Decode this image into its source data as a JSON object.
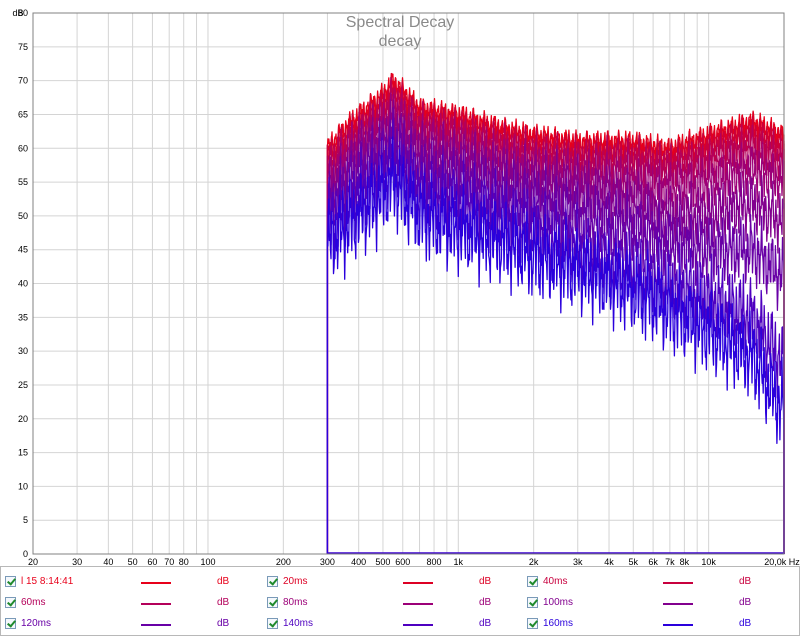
{
  "chart_data": {
    "type": "line",
    "title": "Spectral Decay",
    "subtitle": "decay",
    "ylabel": "dB",
    "x_unit": "Hz",
    "x_scale": "log",
    "xlim": [
      20,
      20000
    ],
    "ylim": [
      0,
      80
    ],
    "grid": true,
    "x_ticks": [
      {
        "value": 20,
        "label": "20"
      },
      {
        "value": 30,
        "label": "30"
      },
      {
        "value": 40,
        "label": "40"
      },
      {
        "value": 50,
        "label": "50"
      },
      {
        "value": 60,
        "label": "60"
      },
      {
        "value": 70,
        "label": "70"
      },
      {
        "value": 80,
        "label": "80"
      },
      {
        "value": 100,
        "label": "100"
      },
      {
        "value": 200,
        "label": "200"
      },
      {
        "value": 300,
        "label": "300"
      },
      {
        "value": 400,
        "label": "400"
      },
      {
        "value": 500,
        "label": "500"
      },
      {
        "value": 600,
        "label": "600"
      },
      {
        "value": 800,
        "label": "800"
      },
      {
        "value": 1000,
        "label": "1k"
      },
      {
        "value": 2000,
        "label": "2k"
      },
      {
        "value": 3000,
        "label": "3k"
      },
      {
        "value": 4000,
        "label": "4k"
      },
      {
        "value": 5000,
        "label": "5k"
      },
      {
        "value": 6000,
        "label": "6k"
      },
      {
        "value": 7000,
        "label": "7k"
      },
      {
        "value": 8000,
        "label": "8k"
      },
      {
        "value": 10000,
        "label": "10k"
      },
      {
        "value": 20000,
        "label": "20,0k Hz"
      }
    ],
    "y_ticks": [
      0,
      5,
      10,
      15,
      20,
      25,
      30,
      35,
      40,
      45,
      50,
      55,
      60,
      65,
      70,
      75,
      80
    ],
    "series": [
      {
        "name": "l 15 8:14:41",
        "color": "#e8001a",
        "x": [
          300,
          350,
          400,
          500,
          550,
          700,
          1000,
          1500,
          2000,
          3000,
          5000,
          7000,
          10000,
          15000,
          20000
        ],
        "values": [
          60,
          63,
          65,
          68,
          70,
          66,
          65,
          63,
          62,
          61,
          61,
          60,
          62,
          64,
          62
        ]
      },
      {
        "name": "20ms",
        "color": "#dd0024",
        "x": [
          300,
          350,
          400,
          500,
          550,
          700,
          1000,
          1500,
          2000,
          3000,
          5000,
          7000,
          10000,
          15000,
          20000
        ],
        "values": [
          59,
          62,
          64,
          67,
          69,
          65,
          64,
          62,
          61,
          60,
          60,
          59,
          61,
          63,
          61
        ]
      },
      {
        "name": "40ms",
        "color": "#c8003e",
        "x": [
          300,
          350,
          400,
          500,
          550,
          700,
          1000,
          1500,
          2000,
          3000,
          5000,
          7000,
          10000,
          15000,
          20000
        ],
        "values": [
          58,
          61,
          63,
          66,
          68,
          64,
          63,
          61,
          60,
          59,
          59,
          58,
          60,
          62,
          60
        ]
      },
      {
        "name": "60ms",
        "color": "#b4005a",
        "x": [
          300,
          350,
          400,
          500,
          550,
          700,
          1000,
          1500,
          2000,
          3000,
          5000,
          7000,
          10000,
          15000,
          20000
        ],
        "values": [
          57,
          60,
          62,
          65,
          67,
          63,
          62,
          60,
          59,
          58,
          58,
          57,
          58,
          60,
          58
        ]
      },
      {
        "name": "80ms",
        "color": "#9c0078",
        "x": [
          300,
          350,
          400,
          500,
          550,
          700,
          1000,
          1500,
          2000,
          3000,
          5000,
          7000,
          10000,
          15000,
          20000
        ],
        "values": [
          55,
          58,
          61,
          63,
          65,
          61,
          60,
          58,
          57,
          56,
          55,
          54,
          55,
          57,
          55
        ]
      },
      {
        "name": "100ms",
        "color": "#82008e",
        "x": [
          300,
          350,
          400,
          500,
          550,
          700,
          1000,
          1500,
          2000,
          3000,
          5000,
          7000,
          10000,
          15000,
          20000
        ],
        "values": [
          53,
          56,
          59,
          61,
          63,
          59,
          58,
          56,
          55,
          54,
          52,
          50,
          50,
          52,
          49
        ]
      },
      {
        "name": "120ms",
        "color": "#6800a6",
        "x": [
          300,
          350,
          400,
          500,
          550,
          700,
          1000,
          1500,
          2000,
          3000,
          5000,
          7000,
          10000,
          15000,
          20000
        ],
        "values": [
          51,
          54,
          56,
          59,
          61,
          56,
          55,
          53,
          52,
          50,
          48,
          46,
          45,
          45,
          41
        ]
      },
      {
        "name": "140ms",
        "color": "#4e00c0",
        "x": [
          300,
          350,
          400,
          500,
          550,
          700,
          1000,
          1500,
          2000,
          3000,
          5000,
          7000,
          10000,
          15000,
          20000
        ],
        "values": [
          49,
          51,
          53,
          56,
          58,
          53,
          52,
          50,
          48,
          45,
          42,
          40,
          38,
          35,
          28
        ]
      },
      {
        "name": "160ms",
        "color": "#2a00dc",
        "x": [
          300,
          350,
          400,
          500,
          550,
          700,
          1000,
          1500,
          2000,
          3000,
          5000,
          7000,
          10000,
          15000,
          20000
        ],
        "values": [
          46,
          48,
          50,
          53,
          55,
          50,
          48,
          46,
          44,
          42,
          39,
          36,
          33,
          29,
          21
        ]
      }
    ]
  },
  "legend": {
    "unit": "dB",
    "items": [
      {
        "name": "l 15 8:14:41",
        "color": "#e8001a"
      },
      {
        "name": "20ms",
        "color": "#dd0024"
      },
      {
        "name": "40ms",
        "color": "#c8003e"
      },
      {
        "name": "60ms",
        "color": "#b4005a"
      },
      {
        "name": "80ms",
        "color": "#9c0078"
      },
      {
        "name": "100ms",
        "color": "#82008e"
      },
      {
        "name": "120ms",
        "color": "#6800a6"
      },
      {
        "name": "140ms",
        "color": "#4e00c0"
      },
      {
        "name": "160ms",
        "color": "#2a00dc"
      }
    ]
  }
}
